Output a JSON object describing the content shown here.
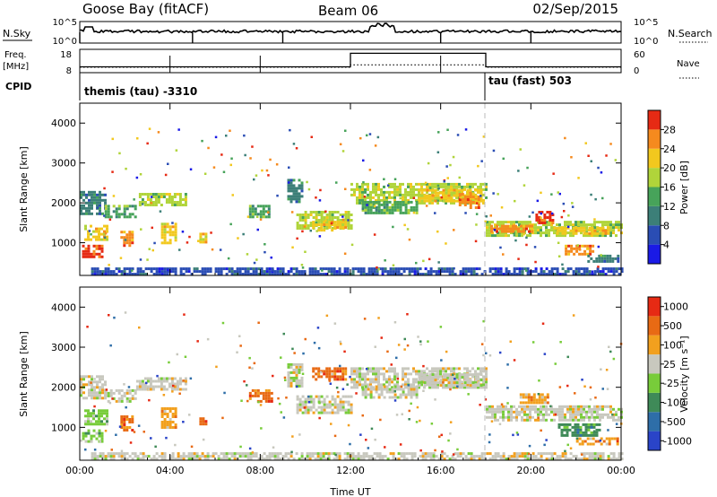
{
  "header": {
    "station": "Goose Bay (fitACF)",
    "beam": "Beam 06",
    "date": "02/Sep/2015"
  },
  "nsky_panel": {
    "left_label": "N.Sky",
    "right_label": "N.Search",
    "y_top_tick": "10^5",
    "y_bottom_tick": "10^0"
  },
  "freq_panel": {
    "left_label_1": "Freq.",
    "left_label_2": "[MHz]",
    "right_label": "Nave",
    "left_tick_top": "18",
    "left_tick_bottom": "8",
    "right_tick_top": "60",
    "right_tick_bottom": "0",
    "freq_steps": [
      {
        "start": 0,
        "end": 12.0,
        "mhz": 10.5
      },
      {
        "start": 12.0,
        "end": 18.0,
        "mhz": 16.3
      },
      {
        "start": 18.0,
        "end": 24.0,
        "mhz": 10.5
      }
    ],
    "nave_steps": [
      {
        "start": 0,
        "end": 12.0,
        "nave": 14
      },
      {
        "start": 12.0,
        "end": 18.0,
        "nave": 20
      },
      {
        "start": 18.0,
        "end": 24.0,
        "nave": 14
      }
    ]
  },
  "cpid": {
    "label": "CPID",
    "mode1": "themis (tau) -3310",
    "mode2": "tau (fast) 503",
    "switch_hour": 18.0
  },
  "axes": {
    "ylabel": "Slant Range [km]",
    "xlabel": "Time UT",
    "x_ticks": [
      "00:00",
      "04:00",
      "08:00",
      "12:00",
      "16:00",
      "20:00",
      "00:00"
    ],
    "y_ticks": [
      "1000",
      "2000",
      "3000",
      "4000"
    ]
  },
  "power_scale": {
    "label": "Power [dB]",
    "ticks": [
      "4",
      "8",
      "12",
      "16",
      "20",
      "24",
      "28"
    ],
    "colors": [
      "#1a1ae6",
      "#2a4db4",
      "#3c7f78",
      "#47a35a",
      "#b0d43a",
      "#f2c81e",
      "#f58a1e",
      "#e62a14"
    ]
  },
  "velocity_scale": {
    "label": "Velocity [m s⁻¹]",
    "ticks": [
      "1000",
      "500",
      "100",
      "25",
      "-25",
      "-100",
      "-500",
      "-1000"
    ],
    "colors": [
      "#2a44c8",
      "#2e6ea8",
      "#3f8a58",
      "#78cc3a",
      "#c8c8be",
      "#f2a01e",
      "#e86a14",
      "#e62a14"
    ]
  },
  "chart_data": {
    "type": "heatmap",
    "title": "Goose Bay (fitACF) Beam 06 02/Sep/2015",
    "xlabel": "Time UT",
    "ylabel": "Slant Range [km]",
    "xlim": [
      0,
      24
    ],
    "ylim": [
      180,
      4500
    ],
    "power_regions": [
      {
        "t0": 0.0,
        "t1": 1.1,
        "r0": 1700,
        "r1": 2300,
        "level": 2
      },
      {
        "t0": 0.1,
        "t1": 1.0,
        "r0": 650,
        "r1": 950,
        "level": 7
      },
      {
        "t0": 0.2,
        "t1": 1.2,
        "r0": 1050,
        "r1": 1450,
        "level": 5
      },
      {
        "t0": 1.1,
        "t1": 2.5,
        "r0": 1650,
        "r1": 1950,
        "level": 3
      },
      {
        "t0": 2.5,
        "t1": 4.7,
        "r0": 1950,
        "r1": 2250,
        "level": 4
      },
      {
        "t0": 1.8,
        "t1": 2.3,
        "r0": 900,
        "r1": 1300,
        "level": 6
      },
      {
        "t0": 3.6,
        "t1": 4.2,
        "r0": 1000,
        "r1": 1500,
        "level": 5
      },
      {
        "t0": 5.3,
        "t1": 5.6,
        "r0": 1000,
        "r1": 1250,
        "level": 5
      },
      {
        "t0": 7.5,
        "t1": 8.5,
        "r0": 1650,
        "r1": 1950,
        "level": 3
      },
      {
        "t0": 9.2,
        "t1": 9.8,
        "r0": 2000,
        "r1": 2600,
        "level": 2
      },
      {
        "t0": 9.6,
        "t1": 12.0,
        "r0": 1350,
        "r1": 1800,
        "level": 4
      },
      {
        "t0": 10.3,
        "t1": 11.8,
        "r0": 1300,
        "r1": 1550,
        "level": 5
      },
      {
        "t0": 12.0,
        "t1": 18.0,
        "r0": 2000,
        "r1": 2500,
        "level": 4
      },
      {
        "t0": 12.5,
        "t1": 15.0,
        "r0": 1750,
        "r1": 2050,
        "level": 3
      },
      {
        "t0": 15.0,
        "t1": 17.8,
        "r0": 2050,
        "r1": 2350,
        "level": 5
      },
      {
        "t0": 16.8,
        "t1": 17.7,
        "r0": 1900,
        "r1": 2250,
        "level": 6
      },
      {
        "t0": 18.0,
        "t1": 24.0,
        "r0": 1150,
        "r1": 1550,
        "level": 4
      },
      {
        "t0": 18.2,
        "t1": 20.0,
        "r0": 1250,
        "r1": 1450,
        "level": 6
      },
      {
        "t0": 20.2,
        "t1": 21.0,
        "r0": 1500,
        "r1": 1800,
        "level": 7
      },
      {
        "t0": 21.0,
        "t1": 23.5,
        "r0": 1200,
        "r1": 1400,
        "level": 5
      },
      {
        "t0": 21.5,
        "t1": 22.8,
        "r0": 700,
        "r1": 950,
        "level": 6
      },
      {
        "t0": 22.5,
        "t1": 23.9,
        "r0": 500,
        "r1": 700,
        "level": 2
      },
      {
        "t0": 0.5,
        "t1": 24.0,
        "r0": 200,
        "r1": 380,
        "level": 1
      }
    ],
    "velocity_regions": [
      {
        "t0": 0.0,
        "t1": 1.1,
        "r0": 1700,
        "r1": 2300,
        "level": 4
      },
      {
        "t0": 0.1,
        "t1": 1.0,
        "r0": 650,
        "r1": 950,
        "level": 3
      },
      {
        "t0": 0.2,
        "t1": 1.2,
        "r0": 1050,
        "r1": 1450,
        "level": 3
      },
      {
        "t0": 1.1,
        "t1": 2.5,
        "r0": 1650,
        "r1": 1950,
        "level": 4
      },
      {
        "t0": 2.5,
        "t1": 4.7,
        "r0": 1950,
        "r1": 2250,
        "level": 4
      },
      {
        "t0": 1.8,
        "t1": 2.3,
        "r0": 900,
        "r1": 1300,
        "level": 6
      },
      {
        "t0": 3.6,
        "t1": 4.2,
        "r0": 1000,
        "r1": 1500,
        "level": 5
      },
      {
        "t0": 5.3,
        "t1": 5.6,
        "r0": 1000,
        "r1": 1250,
        "level": 6
      },
      {
        "t0": 7.5,
        "t1": 8.5,
        "r0": 1650,
        "r1": 1950,
        "level": 6
      },
      {
        "t0": 9.2,
        "t1": 9.8,
        "r0": 2000,
        "r1": 2600,
        "level": 4
      },
      {
        "t0": 9.6,
        "t1": 12.0,
        "r0": 1350,
        "r1": 1800,
        "level": 4
      },
      {
        "t0": 10.3,
        "t1": 11.8,
        "r0": 2200,
        "r1": 2500,
        "level": 6
      },
      {
        "t0": 12.0,
        "t1": 18.0,
        "r0": 2000,
        "r1": 2500,
        "level": 4
      },
      {
        "t0": 12.5,
        "t1": 15.0,
        "r0": 1750,
        "r1": 2050,
        "level": 4
      },
      {
        "t0": 15.0,
        "t1": 17.8,
        "r0": 2050,
        "r1": 2350,
        "level": 4
      },
      {
        "t0": 18.0,
        "t1": 24.0,
        "r0": 1150,
        "r1": 1550,
        "level": 4
      },
      {
        "t0": 19.5,
        "t1": 20.8,
        "r0": 1600,
        "r1": 1850,
        "level": 5
      },
      {
        "t0": 21.2,
        "t1": 23.0,
        "r0": 800,
        "r1": 1100,
        "level": 2
      },
      {
        "t0": 22.0,
        "t1": 23.9,
        "r0": 550,
        "r1": 750,
        "level": 5
      },
      {
        "t0": 0.5,
        "t1": 24.0,
        "r0": 200,
        "r1": 380,
        "level": 4
      }
    ]
  }
}
